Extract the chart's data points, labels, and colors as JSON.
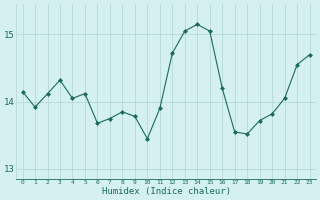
{
  "x": [
    0,
    1,
    2,
    3,
    4,
    5,
    6,
    7,
    8,
    9,
    10,
    11,
    12,
    13,
    14,
    15,
    16,
    17,
    18,
    19,
    20,
    21,
    22,
    23
  ],
  "y": [
    14.15,
    13.92,
    14.12,
    14.32,
    14.05,
    14.12,
    13.68,
    13.75,
    13.85,
    13.78,
    13.45,
    13.9,
    14.72,
    15.05,
    15.15,
    15.05,
    14.2,
    13.55,
    13.52,
    13.72,
    13.82,
    14.05,
    14.55,
    14.7
  ],
  "line_color": "#1a6b5a",
  "marker": "D",
  "marker_size": 2.0,
  "bg_color": "#d5f0f0",
  "grid_color": "#b8d8d8",
  "xlabel": "Humidex (Indice chaleur)",
  "xlabel_color": "#1a6b5a",
  "tick_color": "#1a6b5a",
  "ylim": [
    12.85,
    15.45
  ],
  "yticks": [
    13,
    14,
    15
  ],
  "xlim": [
    -0.5,
    23.5
  ]
}
